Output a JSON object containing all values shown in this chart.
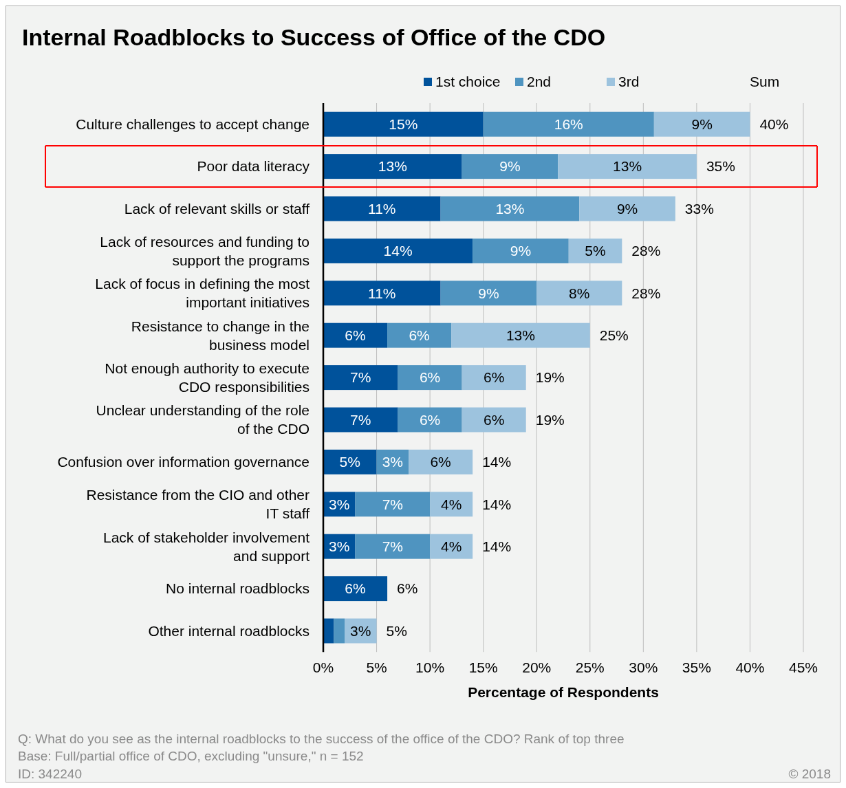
{
  "chart_data": {
    "type": "bar",
    "orientation": "horizontal",
    "stacked": true,
    "title": "Internal Roadblocks to Success of Office of the CDO",
    "xlabel": "Percentage of Respondents",
    "categories": [
      "Culture challenges to accept change",
      "Poor data literacy",
      "Lack of relevant skills or staff",
      "Lack of resources and funding to support the programs",
      "Lack of focus in defining the most important initiatives",
      "Resistance to change in the business model",
      "Not enough authority to execute CDO responsibilities",
      "Unclear understanding of the role of the CDO",
      "Confusion over information governance",
      "Resistance from the CIO and other IT staff",
      "Lack of stakeholder involvement and support",
      "No internal roadblocks",
      "Other internal roadblocks"
    ],
    "series": [
      {
        "name": "1st choice",
        "color": "#00529b",
        "values": [
          15,
          13,
          11,
          14,
          11,
          6,
          7,
          7,
          5,
          3,
          3,
          6,
          1
        ],
        "value_labels": [
          "15%",
          "13%",
          "11%",
          "14%",
          "11%",
          "6%",
          "7%",
          "7%",
          "5%",
          "3%",
          "3%",
          "6%",
          null
        ]
      },
      {
        "name": "2nd",
        "color": "#4f94c0",
        "values": [
          16,
          9,
          13,
          9,
          9,
          6,
          6,
          6,
          3,
          7,
          7,
          null,
          1
        ],
        "value_labels": [
          "16%",
          "9%",
          "13%",
          "9%",
          "9%",
          "6%",
          "6%",
          "6%",
          "3%",
          "7%",
          "7%",
          null,
          null
        ]
      },
      {
        "name": "3rd",
        "color": "#9dc3de",
        "values": [
          9,
          13,
          9,
          5,
          8,
          13,
          6,
          6,
          6,
          4,
          4,
          null,
          3
        ],
        "value_labels": [
          "9%",
          "13%",
          "9%",
          "5%",
          "8%",
          "13%",
          "6%",
          "6%",
          "6%",
          "4%",
          "4%",
          null,
          "3%"
        ]
      }
    ],
    "totals": [
      "40%",
      "35%",
      "33%",
      "28%",
      "28%",
      "25%",
      "19%",
      "19%",
      "14%",
      "14%",
      "14%",
      "6%",
      "5%"
    ],
    "xlim": [
      0,
      45
    ],
    "xticks": [
      {
        "value": 0,
        "label": "0%"
      },
      {
        "value": 5,
        "label": "5%"
      },
      {
        "value": 10,
        "label": "10%"
      },
      {
        "value": 15,
        "label": "15%"
      },
      {
        "value": 20,
        "label": "20%"
      },
      {
        "value": 25,
        "label": "25%"
      },
      {
        "value": 30,
        "label": "30%"
      },
      {
        "value": 35,
        "label": "35%"
      },
      {
        "value": 40,
        "label": "40%"
      },
      {
        "value": 45,
        "label": "45%"
      }
    ],
    "grid": "x",
    "legend": "top",
    "annotations": [
      "Sum",
      "Q: What do you see as the internal roadblocks to the success of the office of the CDO? Rank of top three",
      "Base: Full/partial office of CDO, excluding \"unsure,\" n = 152",
      "ID: 342240",
      "© 2018"
    ]
  }
}
